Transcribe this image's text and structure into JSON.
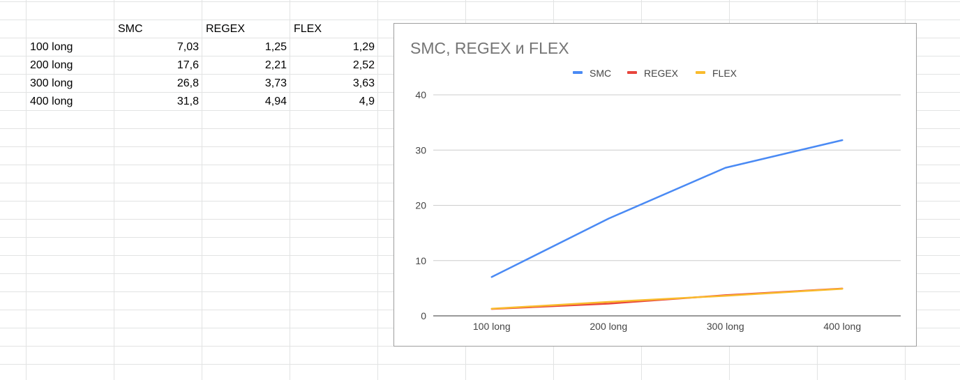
{
  "sheet": {
    "columns": [
      "",
      "SMC",
      "REGEX",
      "FLEX"
    ],
    "rows": [
      {
        "label": "100 long",
        "values": [
          "7,03",
          "1,25",
          "1,29"
        ]
      },
      {
        "label": "200 long",
        "values": [
          "17,6",
          "2,21",
          "2,52"
        ]
      },
      {
        "label": "300 long",
        "values": [
          "26,8",
          "3,73",
          "3,63"
        ]
      },
      {
        "label": "400 long",
        "values": [
          "31,8",
          "4,94",
          "4,9"
        ]
      }
    ]
  },
  "chart_data": {
    "type": "line",
    "title": "SMC, REGEX и FLEX",
    "categories": [
      "100 long",
      "200 long",
      "300 long",
      "400 long"
    ],
    "series": [
      {
        "name": "SMC",
        "color": "#4a8af4",
        "values": [
          7.03,
          17.6,
          26.8,
          31.8
        ]
      },
      {
        "name": "REGEX",
        "color": "#e8453c",
        "values": [
          1.25,
          2.21,
          3.73,
          4.94
        ]
      },
      {
        "name": "FLEX",
        "color": "#f9bb2d",
        "values": [
          1.29,
          2.52,
          3.63,
          4.9
        ]
      }
    ],
    "ylim": [
      0,
      40
    ],
    "yticks": [
      0,
      10,
      20,
      30,
      40
    ],
    "grid": true,
    "legend": "top-center"
  }
}
